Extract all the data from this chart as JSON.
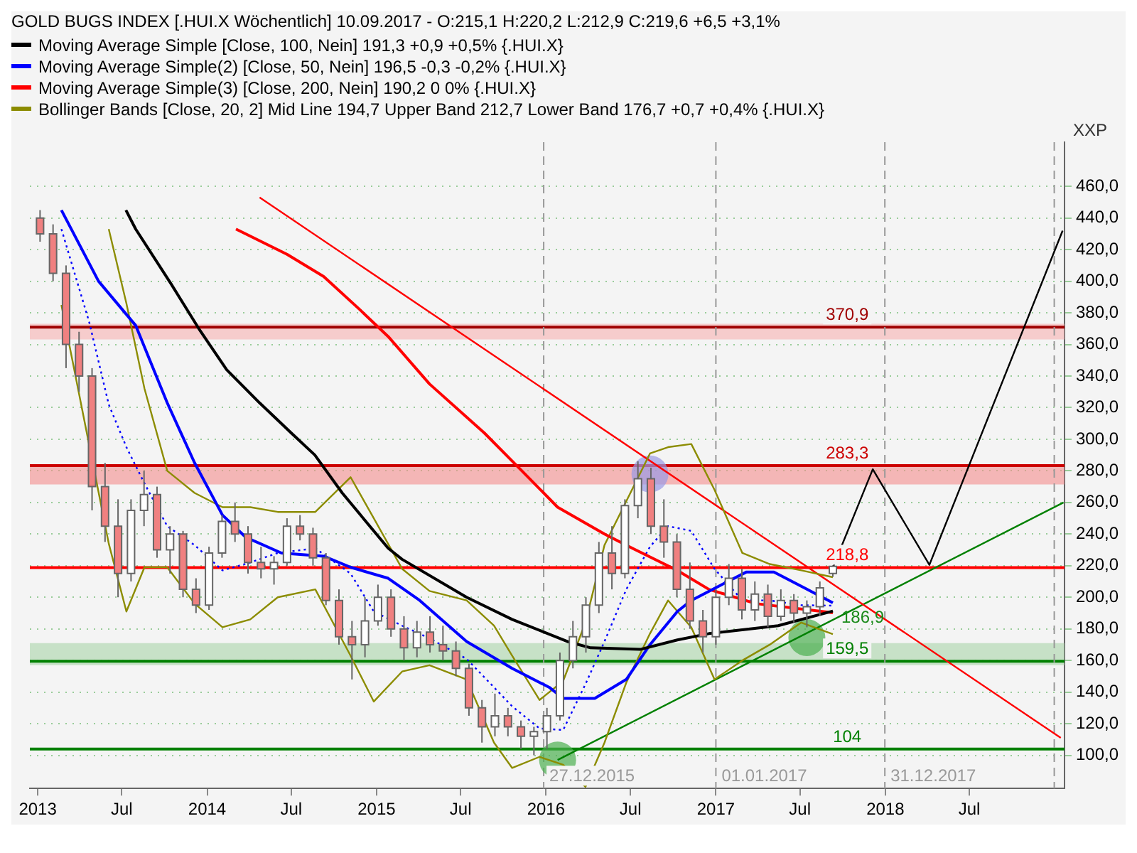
{
  "chart_data": {
    "type": "candlestick",
    "title": "GOLD BUGS INDEX [.HUI.X  Wöchentlich] 10.09.2017 - O:215,1 H:220,2 L:212,9 C:219,6 +6,5 +3,1%",
    "ylabel": "XXP",
    "x": [
      "2013-01-06",
      "2013-02-03",
      "2013-03-03",
      "2013-03-31",
      "2013-04-28",
      "2013-05-26",
      "2013-06-23",
      "2013-07-21",
      "2013-08-18",
      "2013-09-15",
      "2013-10-13",
      "2013-11-10",
      "2013-12-08",
      "2014-01-05",
      "2014-02-02",
      "2014-03-02",
      "2014-03-30",
      "2014-04-27",
      "2014-05-25",
      "2014-06-22",
      "2014-07-20",
      "2014-08-17",
      "2014-09-14",
      "2014-10-12",
      "2014-11-09",
      "2014-12-07",
      "2015-01-04",
      "2015-02-01",
      "2015-03-01",
      "2015-03-29",
      "2015-04-26",
      "2015-05-24",
      "2015-06-21",
      "2015-07-19",
      "2015-08-16",
      "2015-09-13",
      "2015-10-11",
      "2015-11-08",
      "2015-12-06",
      "2016-01-03",
      "2016-01-31",
      "2016-02-28",
      "2016-03-27",
      "2016-04-24",
      "2016-05-22",
      "2016-06-19",
      "2016-07-17",
      "2016-08-14",
      "2016-09-11",
      "2016-10-09",
      "2016-11-06",
      "2016-12-04",
      "2017-01-01",
      "2017-01-29",
      "2017-02-26",
      "2017-03-26",
      "2017-04-23",
      "2017-05-21",
      "2017-06-18",
      "2017-07-16",
      "2017-08-13",
      "2017-09-10"
    ],
    "ohlc": [
      [
        440,
        445,
        425,
        430
      ],
      [
        430,
        436,
        400,
        405
      ],
      [
        405,
        410,
        345,
        360
      ],
      [
        360,
        368,
        330,
        340
      ],
      [
        340,
        345,
        255,
        270
      ],
      [
        270,
        285,
        235,
        245
      ],
      [
        245,
        262,
        200,
        215
      ],
      [
        215,
        262,
        210,
        255
      ],
      [
        255,
        280,
        245,
        265
      ],
      [
        265,
        270,
        225,
        230
      ],
      [
        230,
        245,
        215,
        240
      ],
      [
        240,
        242,
        200,
        205
      ],
      [
        205,
        212,
        190,
        195
      ],
      [
        195,
        232,
        192,
        228
      ],
      [
        228,
        252,
        225,
        248
      ],
      [
        248,
        260,
        235,
        240
      ],
      [
        240,
        245,
        215,
        222
      ],
      [
        222,
        232,
        212,
        218
      ],
      [
        218,
        226,
        208,
        222
      ],
      [
        222,
        250,
        220,
        245
      ],
      [
        245,
        252,
        236,
        240
      ],
      [
        240,
        244,
        220,
        225
      ],
      [
        225,
        228,
        195,
        198
      ],
      [
        198,
        205,
        170,
        175
      ],
      [
        175,
        185,
        148,
        170
      ],
      [
        170,
        200,
        162,
        185
      ],
      [
        185,
        208,
        182,
        200
      ],
      [
        200,
        205,
        175,
        180
      ],
      [
        180,
        188,
        160,
        168
      ],
      [
        168,
        185,
        162,
        178
      ],
      [
        178,
        188,
        165,
        170
      ],
      [
        170,
        182,
        160,
        166
      ],
      [
        166,
        172,
        150,
        155
      ],
      [
        155,
        158,
        125,
        130
      ],
      [
        130,
        135,
        108,
        118
      ],
      [
        118,
        139,
        112,
        125
      ],
      [
        125,
        130,
        112,
        118
      ],
      [
        118,
        122,
        104,
        112
      ],
      [
        112,
        118,
        100,
        115
      ],
      [
        115,
        130,
        104,
        125
      ],
      [
        125,
        165,
        122,
        160
      ],
      [
        160,
        185,
        155,
        175
      ],
      [
        175,
        200,
        165,
        195
      ],
      [
        195,
        235,
        190,
        228
      ],
      [
        228,
        245,
        205,
        215
      ],
      [
        215,
        262,
        212,
        258
      ],
      [
        258,
        286,
        250,
        275
      ],
      [
        275,
        282,
        240,
        245
      ],
      [
        245,
        262,
        225,
        235
      ],
      [
        235,
        240,
        200,
        205
      ],
      [
        205,
        222,
        180,
        185
      ],
      [
        185,
        192,
        165,
        175
      ],
      [
        175,
        205,
        170,
        200
      ],
      [
        200,
        221,
        195,
        212
      ],
      [
        212,
        218,
        186,
        192
      ],
      [
        192,
        210,
        185,
        202
      ],
      [
        202,
        208,
        181,
        188
      ],
      [
        188,
        205,
        185,
        198
      ],
      [
        198,
        202,
        184,
        190
      ],
      [
        190,
        198,
        181,
        194
      ],
      [
        194,
        210,
        188,
        206
      ],
      [
        215.1,
        220.2,
        212.9,
        219.6
      ]
    ],
    "colors": [
      "#f08080",
      "#f08080",
      "#f08080",
      "#f08080",
      "#f08080",
      "#f08080",
      "#f08080",
      "#ffffff",
      "#ffffff",
      "#f08080",
      "#ffffff",
      "#f08080",
      "#f08080",
      "#ffffff",
      "#ffffff",
      "#f08080",
      "#f08080",
      "#f08080",
      "#ffffff",
      "#ffffff",
      "#f08080",
      "#f08080",
      "#f08080",
      "#f08080",
      "#f08080",
      "#ffffff",
      "#ffffff",
      "#f08080",
      "#f08080",
      "#ffffff",
      "#f08080",
      "#f08080",
      "#f08080",
      "#f08080",
      "#f08080",
      "#ffffff",
      "#f08080",
      "#f08080",
      "#ffffff",
      "#ffffff",
      "#ffffff",
      "#ffffff",
      "#ffffff",
      "#ffffff",
      "#f08080",
      "#ffffff",
      "#ffffff",
      "#f08080",
      "#f08080",
      "#f08080",
      "#f08080",
      "#f08080",
      "#ffffff",
      "#ffffff",
      "#f08080",
      "#ffffff",
      "#f08080",
      "#ffffff",
      "#f08080",
      "#ffffff",
      "#ffffff",
      "#ffffff"
    ],
    "series": [
      {
        "type": "line",
        "name": "Moving Average Simple [Close, 100, Nein] 191,3 +0,9 +0,5% {.HUI.X}",
        "color": "#000000",
        "x": [
          "2013-07-10",
          "2013-07-31",
          "2013-10-16",
          "2013-12-14",
          "2014-02-12",
          "2014-04-24",
          "2014-07-01",
          "2014-08-21",
          "2014-10-19",
          "2015-01-26",
          "2015-02-25",
          "2015-07-14",
          "2015-10-20",
          "2016-02-16",
          "2016-04-06",
          "2016-07-22",
          "2016-10-10",
          "2016-12-17",
          "2017-05-15",
          "2017-09-10"
        ],
        "values": [
          445,
          433,
          398,
          370,
          344,
          323,
          304,
          290,
          266,
          231,
          224,
          200,
          186,
          172,
          168,
          167,
          173,
          177,
          182,
          191.3
        ]
      },
      {
        "type": "line",
        "name": "Moving Average Simple(2) [Close, 50, Nein] 196,5 -0,3 -0,2% {.HUI.X}",
        "color": "#0000ff",
        "x": [
          "2013-02-21",
          "2013-05-12",
          "2013-07-31",
          "2013-10-07",
          "2013-12-05",
          "2014-02-03",
          "2014-03-25",
          "2014-06-10",
          "2014-09-09",
          "2014-11-06",
          "2015-01-26",
          "2015-04-04",
          "2015-07-14",
          "2015-10-20",
          "2016-01-08",
          "2016-02-07",
          "2016-04-15",
          "2016-06-22",
          "2016-08-12",
          "2016-10-10",
          "2016-11-09",
          "2017-01-07",
          "2017-03-08",
          "2017-05-06",
          "2017-07-04",
          "2017-09-10"
        ],
        "values": [
          445,
          400,
          372,
          323,
          285,
          252,
          238,
          228,
          226,
          219,
          212,
          198,
          172,
          155,
          143,
          136,
          136,
          148,
          170,
          191,
          198,
          207,
          216,
          216,
          207,
          196.5
        ]
      },
      {
        "type": "line",
        "name": "Moving Average Simple(3) [Close, 200, Nein] 190,2 0 0% {.HUI.X}",
        "color": "#ff0000",
        "x": [
          "2014-03-04",
          "2014-06-22",
          "2014-09-09",
          "2014-11-26",
          "2015-01-26",
          "2015-04-25",
          "2015-08-21",
          "2015-11-10",
          "2016-01-26",
          "2016-05-06",
          "2016-07-05",
          "2016-10-10",
          "2016-12-17",
          "2017-03-28",
          "2017-09-10"
        ],
        "values": [
          433,
          417,
          403,
          382,
          365,
          335,
          304,
          280,
          257,
          240,
          231,
          217,
          205,
          196,
          190.2
        ]
      },
      {
        "type": "line",
        "name": "Bollinger Bands [Close, 20, 2] Mid Line 194,7 Upper Band 212,7 Lower Band 176,7 +0,7 +0,4% {.HUI.X}",
        "color": "#8c8c00",
        "x": [
          "2013-06-03",
          "2013-07-11",
          "2013-08-19",
          "2013-10-07",
          "2013-12-05",
          "2014-02-03",
          "2014-04-04",
          "2014-06-02",
          "2014-08-22",
          "2014-11-06",
          "2014-12-26",
          "2015-02-25",
          "2015-04-25",
          "2015-07-14",
          "2015-09-11",
          "2015-10-20",
          "2015-12-18",
          "2016-02-07",
          "2016-03-26",
          "2016-05-06",
          "2016-06-22",
          "2016-08-12",
          "2016-09-20",
          "2016-11-09",
          "2016-12-29",
          "2017-02-27",
          "2017-04-27",
          "2017-07-04",
          "2017-09-10"
        ],
        "values": [
          433,
          386,
          332,
          280,
          266,
          257,
          257,
          254,
          254,
          276,
          250,
          218,
          204,
          198,
          182,
          163,
          135,
          147,
          184,
          233,
          null,
          291,
          295,
          297,
          268,
          228,
          221,
          217,
          212.7
        ]
      },
      {
        "type": "line",
        "color": "#0000ff",
        "line_style": "dotted",
        "x": [
          "2013-02-21",
          "2013-04-22",
          "2013-06-03",
          "2013-07-11",
          "2013-08-19",
          "2013-10-07",
          "2013-12-05",
          "2014-02-03",
          "2014-04-04",
          "2014-06-02",
          "2014-08-22",
          "2014-11-06",
          "2014-12-26",
          "2015-02-25",
          "2015-04-25",
          "2015-07-14",
          "2015-09-11",
          "2015-10-20",
          "2015-12-18",
          "2016-02-07",
          "2016-03-26",
          "2016-05-06",
          "2016-06-22",
          "2016-08-12",
          "2016-09-20",
          "2016-11-09",
          "2016-12-29",
          "2017-02-27",
          "2017-04-27",
          "2017-07-04",
          "2017-09-10"
        ],
        "values": [
          433,
          374,
          322,
          295,
          272,
          245,
          233,
          217,
          222,
          228,
          231,
          215,
          191,
          182,
          174,
          161,
          143,
          131,
          117,
          116,
          145,
          172,
          205,
          232,
          245,
          242,
          218,
          198,
          198,
          195,
          194.7
        ]
      },
      {
        "type": "line",
        "color": "#8c8c00",
        "x": [
          "2013-02-21",
          "2013-04-22",
          "2013-06-03",
          "2013-07-11",
          "2013-08-19",
          "2013-10-07",
          "2013-12-05",
          "2014-02-03",
          "2014-04-04",
          "2014-06-02",
          "2014-08-22",
          "2014-11-06",
          "2014-12-26",
          "2015-02-25",
          "2015-04-25",
          "2015-07-14",
          "2015-09-11",
          "2015-10-20",
          "2015-12-18",
          "2016-02-07",
          "2016-03-26",
          "2016-05-06",
          "2016-06-22",
          "2016-08-12",
          "2016-09-20",
          "2016-11-09",
          "2016-12-29",
          "2017-02-27",
          "2017-04-27",
          "2017-07-04",
          "2017-09-10"
        ],
        "values": [
          385,
          null,
          234,
          191,
          219,
          219,
          196,
          181,
          186,
          200,
          205,
          163,
          134,
          153,
          157,
          148,
          108,
          92,
          99,
          94,
          80,
          108,
          146,
          177,
          198,
          181,
          148,
          160,
          170,
          184,
          176.7
        ]
      },
      {
        "type": "line",
        "color": "#ff0000",
        "x": [
          "2014-04-24",
          "2019-01-14"
        ],
        "values": [
          453,
          111
        ]
      },
      {
        "type": "line",
        "color": "#008000",
        "x": [
          "2016-01-26",
          "2019-01-20"
        ],
        "values": [
          97,
          260
        ]
      },
      {
        "type": "line",
        "color": "#000000",
        "x": [
          "2017-09-10",
          "2017-12-05",
          "2018-04-06",
          "2019-01-18"
        ],
        "values": [
          218.8,
          281,
          220.5,
          432
        ]
      },
      {
        "type": "scatter",
        "marker": "circle",
        "colors": [
          "#4caf50",
          "#9a9ae6",
          "#4caf50"
        ],
        "x": [
          "2016-01-26",
          "2016-08-12",
          "2017-07-16"
        ],
        "values": [
          97,
          278,
          174.5
        ]
      }
    ],
    "bands": [
      {
        "axis": "y",
        "from": 363.2,
        "to": 373.1,
        "color": "#f7b0b0"
      },
      {
        "axis": "y",
        "from": 271.4,
        "to": 284,
        "color": "#f48c8c"
      },
      {
        "axis": "y",
        "from": 157,
        "to": 171,
        "color": "#a8d4a8"
      }
    ],
    "ref_lines": [
      {
        "axis": "y",
        "value": 370.9,
        "label": "370,9",
        "color": "#a00000"
      },
      {
        "axis": "y",
        "value": 283.3,
        "label": "283,3",
        "color": "#cc0000"
      },
      {
        "axis": "y",
        "value": 218.8,
        "label": "218,8",
        "color": "#ff0000"
      },
      {
        "axis": "y",
        "value": 159.5,
        "label": "159,5",
        "color": "#008000"
      },
      {
        "axis": "y",
        "value": 104,
        "label": "104",
        "color": "#008000"
      },
      {
        "axis": "x",
        "value": "2015-12-27",
        "label": "27.12.2015",
        "color": "#999999",
        "line_style": "dashed"
      },
      {
        "axis": "x",
        "value": "2017-01-01",
        "label": "01.01.2017",
        "color": "#999999",
        "line_style": "dashed"
      },
      {
        "axis": "x",
        "value": "2017-12-31",
        "label": "31.12.2017",
        "color": "#999999",
        "line_style": "dashed"
      },
      {
        "axis": "x",
        "value": "2018-12-31",
        "label": null,
        "color": "#999999",
        "line_style": "dashed"
      }
    ],
    "annotations": [
      {
        "text": "186,9",
        "x": "2017-09-10",
        "y": 186.9
      }
    ],
    "xlim": [
      "2012-12-15",
      "2019-01-22"
    ],
    "xticks": [
      {
        "value": "2013-01-01",
        "label": "2013"
      },
      {
        "value": "2013-07-01",
        "label": "Jul"
      },
      {
        "value": "2014-01-01",
        "label": "2014"
      },
      {
        "value": "2014-07-01",
        "label": "Jul"
      },
      {
        "value": "2015-01-01",
        "label": "2015"
      },
      {
        "value": "2015-07-01",
        "label": "Jul"
      },
      {
        "value": "2016-01-01",
        "label": "2016"
      },
      {
        "value": "2016-07-01",
        "label": "Jul"
      },
      {
        "value": "2017-01-01",
        "label": "2017"
      },
      {
        "value": "2017-07-01",
        "label": "Jul"
      },
      {
        "value": "2018-01-01",
        "label": "2018"
      },
      {
        "value": "2018-07-01",
        "label": "Jul"
      }
    ],
    "ylim": [
      79,
      488
    ],
    "yticks": [
      {
        "value": 100,
        "label": "100,0"
      },
      {
        "value": 120,
        "label": "120,0"
      },
      {
        "value": 140,
        "label": "140,0"
      },
      {
        "value": 160,
        "label": "160,0"
      },
      {
        "value": 180,
        "label": "180,0"
      },
      {
        "value": 200,
        "label": "200,0"
      },
      {
        "value": 220,
        "label": "220,0"
      },
      {
        "value": 240,
        "label": "240,0"
      },
      {
        "value": 260,
        "label": "260,0"
      },
      {
        "value": 280,
        "label": "280,0"
      },
      {
        "value": 300,
        "label": "300,0"
      },
      {
        "value": 320,
        "label": "320,0"
      },
      {
        "value": 340,
        "label": "340,0"
      },
      {
        "value": 360,
        "label": "360,0"
      },
      {
        "value": 380,
        "label": "380,0"
      },
      {
        "value": 400,
        "label": "400,0"
      },
      {
        "value": 420,
        "label": "420,0"
      },
      {
        "value": 440,
        "label": "440,0"
      },
      {
        "value": 460,
        "label": "460,0"
      }
    ],
    "grid": "y",
    "legend": "top left"
  }
}
